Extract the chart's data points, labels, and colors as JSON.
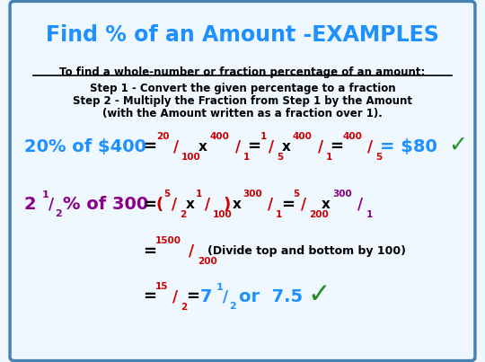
{
  "title": "Find % of an Amount -EXAMPLES",
  "title_color": "#1E90FF",
  "background_color": "#F0F8FF",
  "border_color": "#4682B4",
  "figsize": [
    5.4,
    4.03
  ],
  "dpi": 100,
  "instruction_underline": "To find a whole-number or fraction percentage of an amount:",
  "step1": "Step 1 - Convert the given percentage to a fraction",
  "step2": "Step 2 - Multiply the Fraction from Step 1 by the Amount",
  "step2b": "(with the Amount written as a fraction over 1).",
  "dark_red": "#CC0000",
  "purple": "#8B008B",
  "blue": "#1E90FF",
  "black": "#000000",
  "green": "#228B22"
}
